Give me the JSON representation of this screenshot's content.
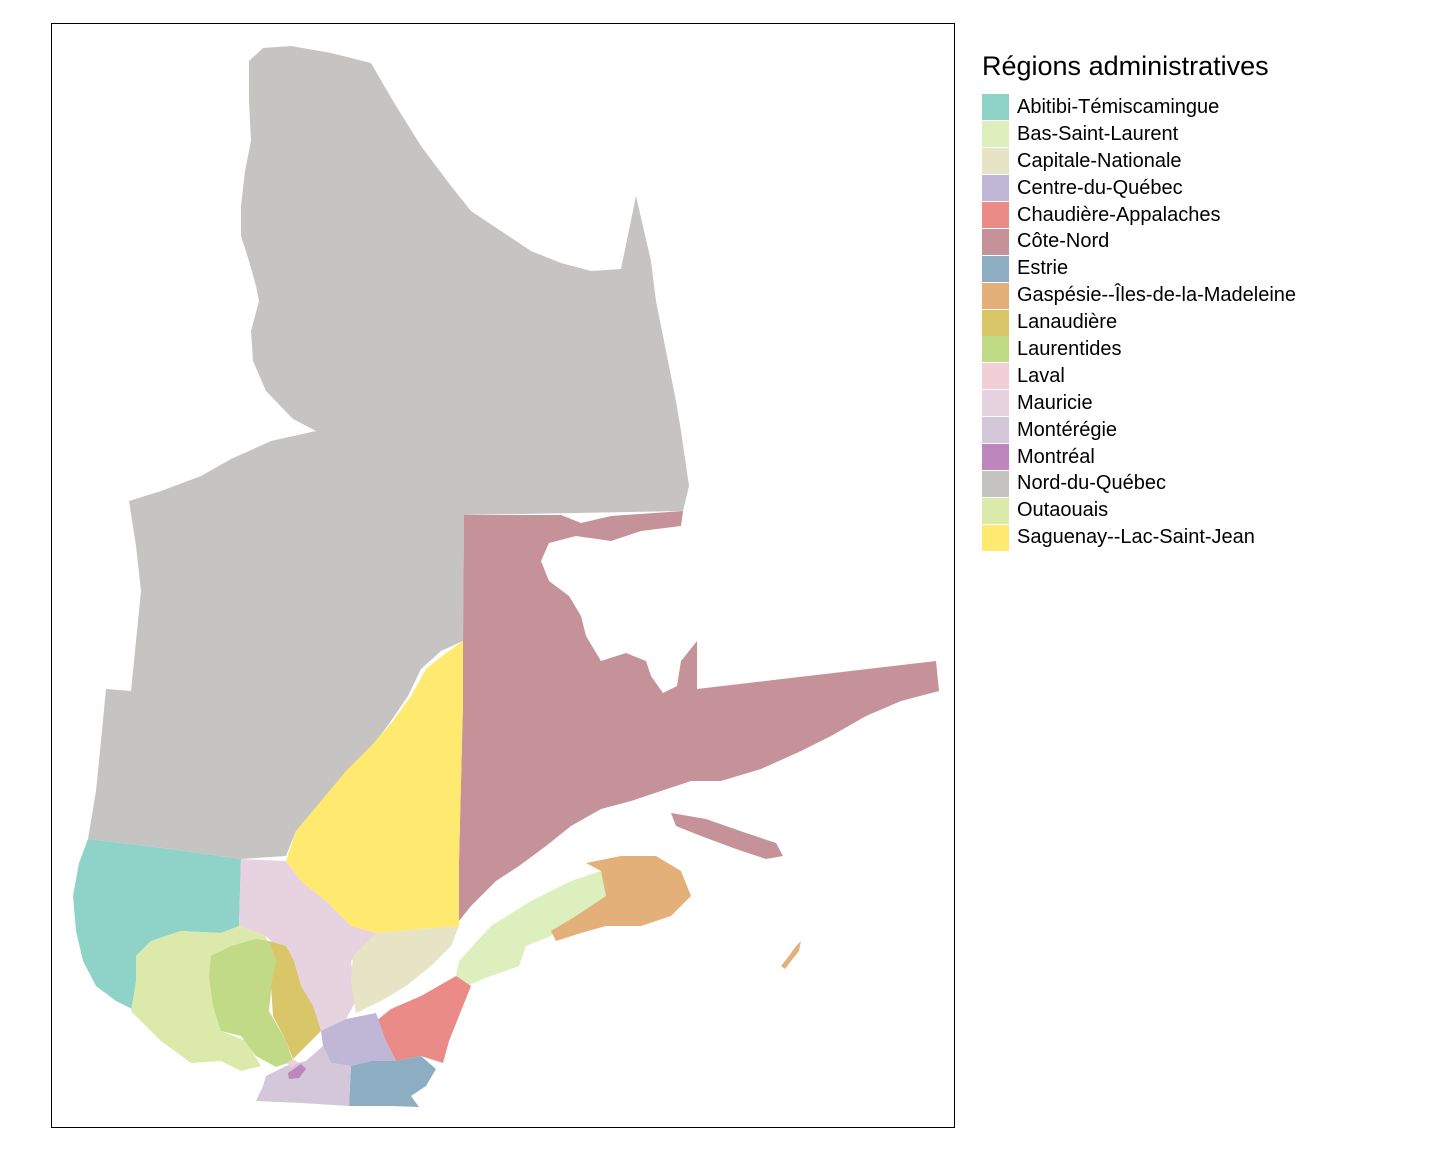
{
  "legend": {
    "title": "Régions administratives",
    "items": [
      {
        "id": "abitibi",
        "label": "Abitibi-Témiscamingue",
        "color": "#8fd3c8"
      },
      {
        "id": "bas-saint-laurent",
        "label": "Bas-Saint-Laurent",
        "color": "#dcefbc"
      },
      {
        "id": "capitale-nationale",
        "label": "Capitale-Nationale",
        "color": "#e6e4c5"
      },
      {
        "id": "centre-du-quebec",
        "label": "Centre-du-Québec",
        "color": "#c0b6d6"
      },
      {
        "id": "chaudiere-appalaches",
        "label": "Chaudière-Appalaches",
        "color": "#ea8b87"
      },
      {
        "id": "cote-nord",
        "label": "Côte-Nord",
        "color": "#c49298"
      },
      {
        "id": "estrie",
        "label": "Estrie",
        "color": "#8dadc3"
      },
      {
        "id": "gaspesie",
        "label": "Gaspésie--Îles-de-la-Madeleine",
        "color": "#e4b07a"
      },
      {
        "id": "lanaudiere",
        "label": "Lanaudière",
        "color": "#d8c668"
      },
      {
        "id": "laurentides",
        "label": "Laurentides",
        "color": "#c0da86"
      },
      {
        "id": "laval",
        "label": "Laval",
        "color": "#f0d0d6"
      },
      {
        "id": "mauricie",
        "label": "Mauricie",
        "color": "#e7d3e0"
      },
      {
        "id": "monteregie",
        "label": "Montérégie",
        "color": "#d3c7d9"
      },
      {
        "id": "montreal",
        "label": "Montréal",
        "color": "#bd86bd"
      },
      {
        "id": "nord-du-quebec",
        "label": "Nord-du-Québec",
        "color": "#c6c4c3"
      },
      {
        "id": "outaouais",
        "label": "Outaouais",
        "color": "#dbe9ab"
      },
      {
        "id": "saguenay",
        "label": "Saguenay--Lac-Saint-Jean",
        "color": "#ffe96f"
      }
    ]
  }
}
